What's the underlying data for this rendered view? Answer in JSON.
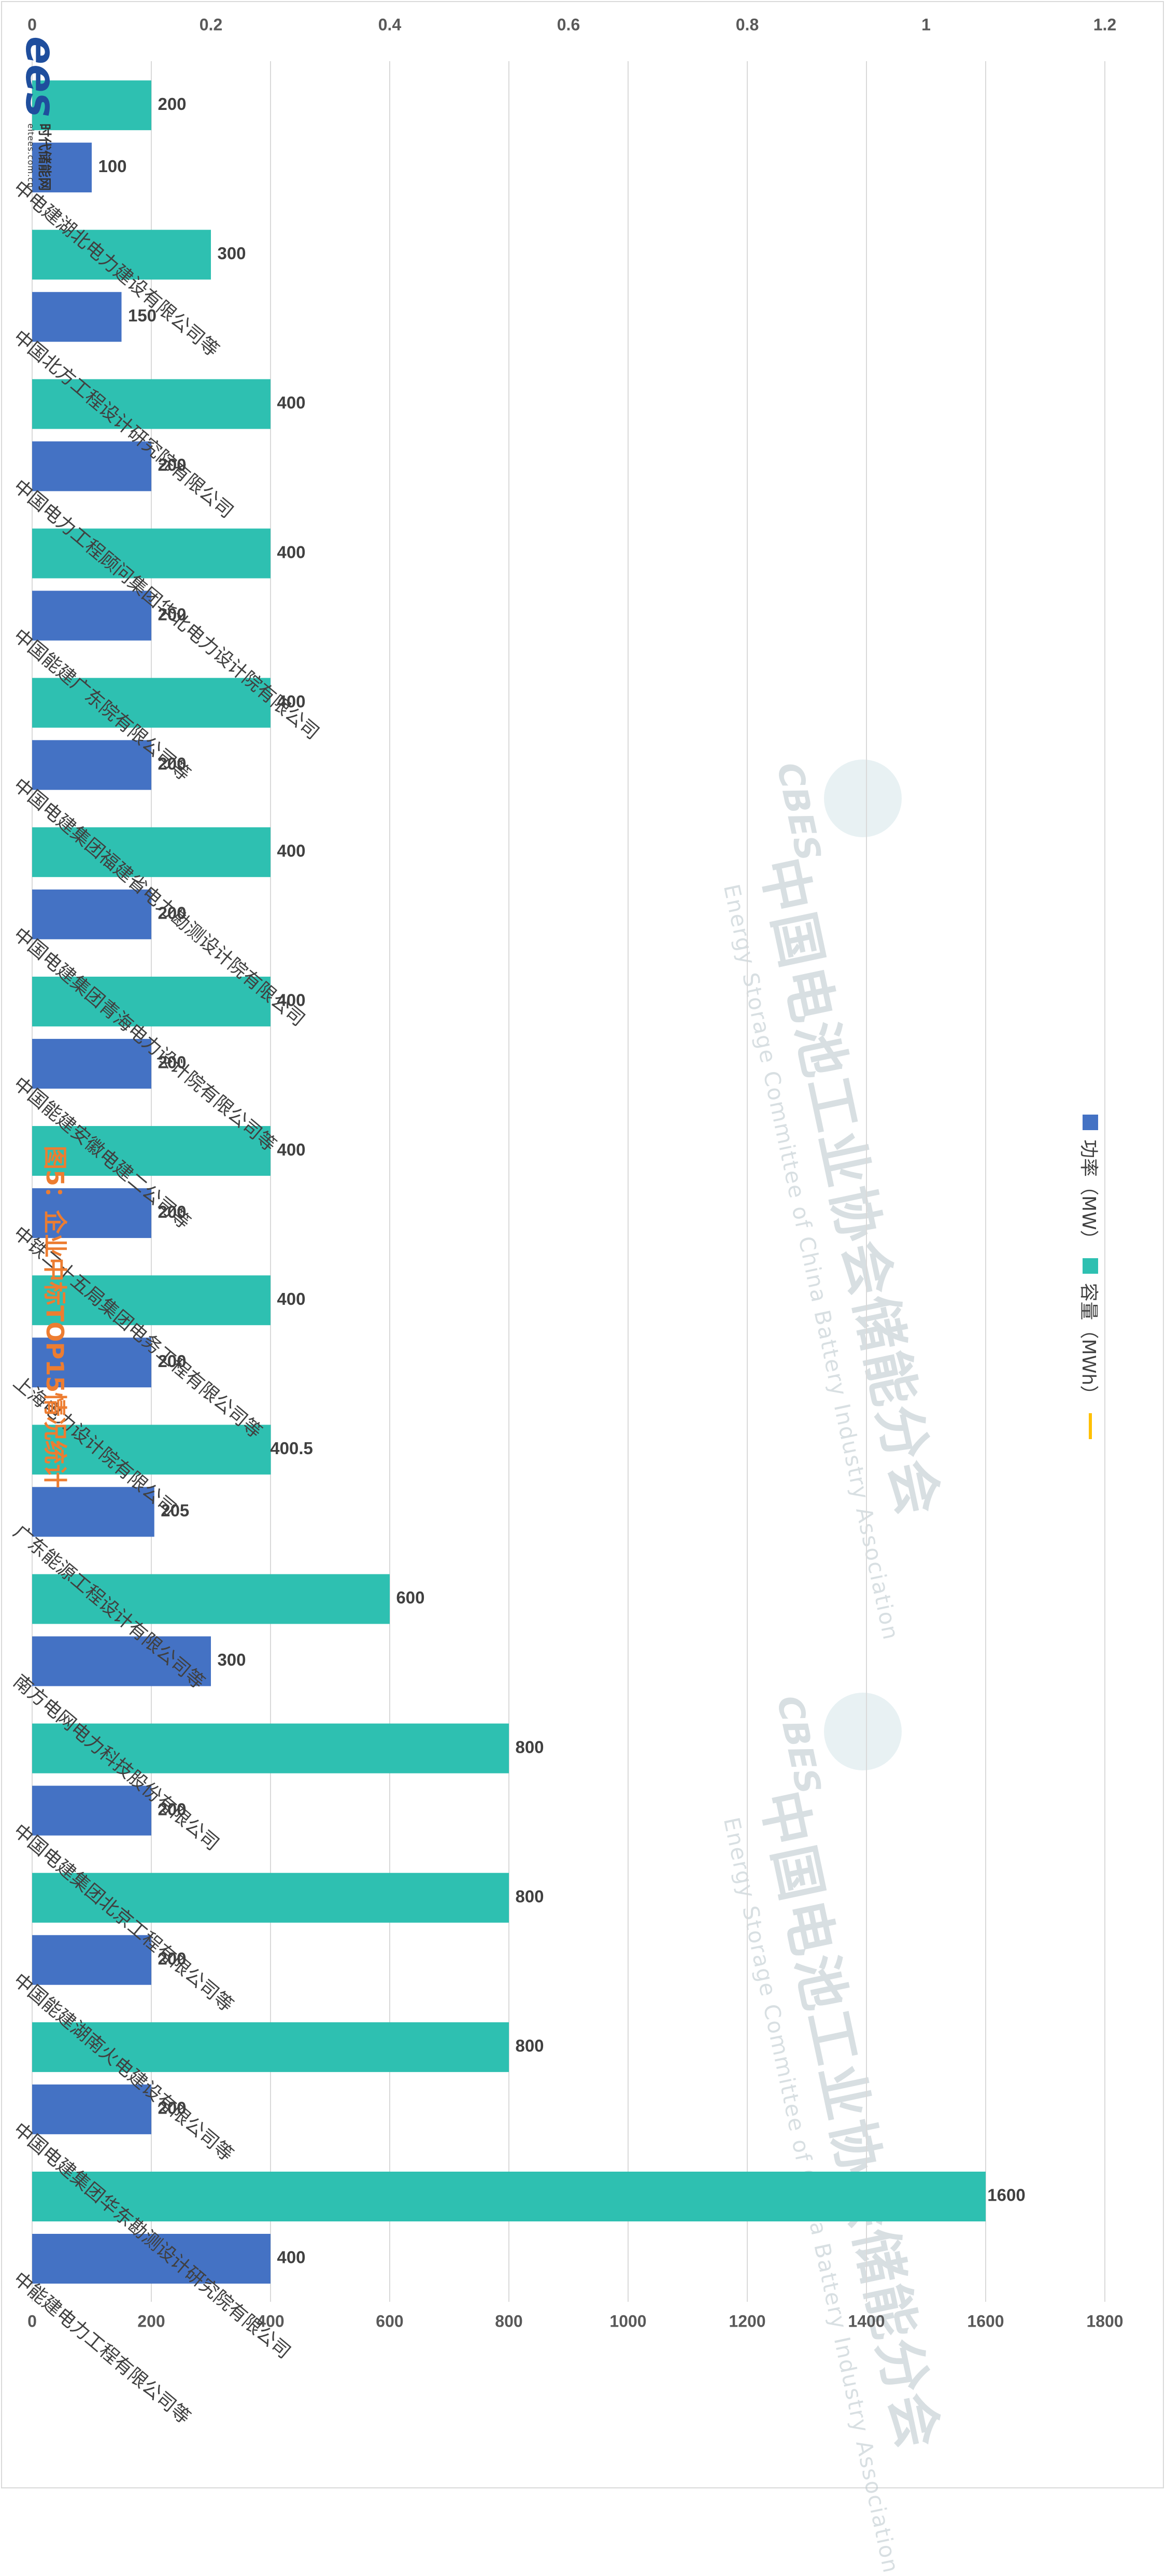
{
  "title": "图5：企业中标TOP15情况统计",
  "legend": [
    {
      "label": "功率（MW）",
      "color": "#4472c4",
      "kind": "square"
    },
    {
      "label": "容量（MWh）",
      "color": "#2ec0b1",
      "kind": "square"
    },
    {
      "label": "",
      "color": "#ffc000",
      "kind": "line"
    }
  ],
  "watermark": {
    "cn": "中国电池工业协会储能分会",
    "en": "Energy Storage Committee of China Battery Industry Association",
    "logo": "CBES"
  },
  "brand": {
    "mark": "ees",
    "cn": "时代储能网",
    "url": "eitees.com.cn"
  },
  "chart_data": {
    "type": "bar",
    "title": "图5：企业中标TOP15情况统计",
    "categories": [
      "中能建电力工程有限公司等",
      "中国电建集团华东勘测设计研究院有限公司",
      "中国能建湖南火电建设有限公司等",
      "中国电建集团北京工程有限公司等",
      "南方电网电力科技股份有限公司",
      "广东能源工程设计有限公司等",
      "上海电力设计院有限公司",
      "中铁二十五局集团电务工程有限公司等",
      "中国能建安徽电建二公司等",
      "中国电建集团青海电力设计院有限公司等",
      "中国电建集团福建省电力勘测设计院有限公司",
      "中国能建广东院有限公司等",
      "中国电力工程顾问集团华北电力设计院有限公司",
      "中国北方工程设计研究院有限公司",
      "中电建湖北电力建设有限公司等"
    ],
    "series": [
      {
        "name": "功率（MW）",
        "color": "#4472c4",
        "values": [
          400,
          200,
          200,
          200,
          300,
          205,
          200,
          200,
          200,
          200,
          200,
          200,
          200,
          150,
          100
        ]
      },
      {
        "name": "容量（MWh）",
        "color": "#2ec0b1",
        "values": [
          1600,
          800,
          800,
          800,
          600,
          400.5,
          400,
          400,
          400,
          400,
          400,
          400,
          400,
          300,
          200
        ]
      }
    ],
    "data_labels": [
      [
        "400",
        "200",
        "200",
        "200",
        "300",
        "205",
        "200",
        "200",
        "200",
        "200",
        "200",
        "200",
        "200",
        "150",
        "100"
      ],
      [
        "1600",
        "800",
        "800",
        "800",
        "600",
        "400.5",
        "400",
        "400",
        "400",
        "400",
        "400",
        "400",
        "400",
        "300",
        "200"
      ]
    ],
    "y_ticks": [
      "0",
      "200",
      "400",
      "600",
      "800",
      "1000",
      "1200",
      "1400",
      "1600",
      "1800"
    ],
    "y2_ticks": [
      "0",
      "0.2",
      "0.4",
      "0.6",
      "0.8",
      "1",
      "1.2"
    ],
    "ylim": [
      0,
      1800
    ],
    "y2lim": [
      0,
      1.2
    ],
    "grid": true,
    "legend_position": "bottom"
  }
}
